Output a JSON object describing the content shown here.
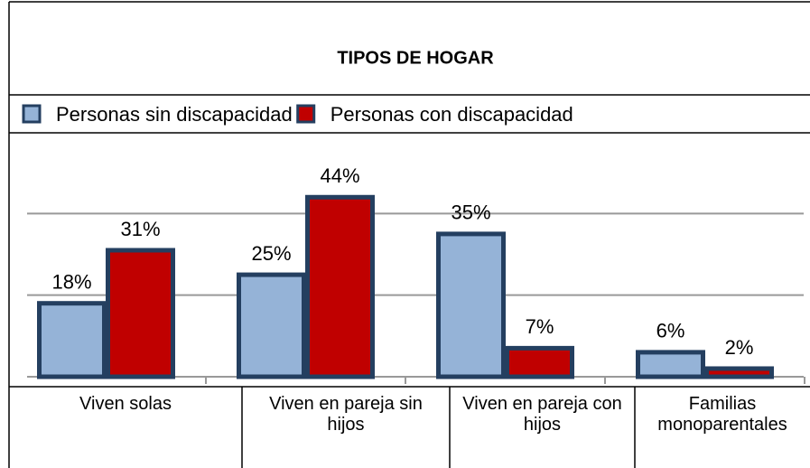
{
  "chart_data": {
    "type": "bar",
    "title": "TIPOS DE HOGAR",
    "categories": [
      "Viven solas",
      "Viven en pareja sin hijos",
      "Viven en pareja con hijos",
      "Familias monoparentales"
    ],
    "series": [
      {
        "name": "Personas sin discapacidad",
        "color": "#95b3d7",
        "values": [
          18,
          25,
          35,
          6
        ],
        "value_labels": [
          "18%",
          "25%",
          "35%",
          "6%"
        ]
      },
      {
        "name": "Personas con discapacidad",
        "color": "#c00000",
        "values": [
          31,
          44,
          7,
          2
        ],
        "value_labels": [
          "31%",
          "44%",
          "7%",
          "2%"
        ]
      }
    ],
    "bar_edge_color": "#243f60",
    "ylim": [
      0,
      60
    ],
    "yticks": [
      0,
      20,
      40
    ],
    "grid": true,
    "legend": "top"
  }
}
